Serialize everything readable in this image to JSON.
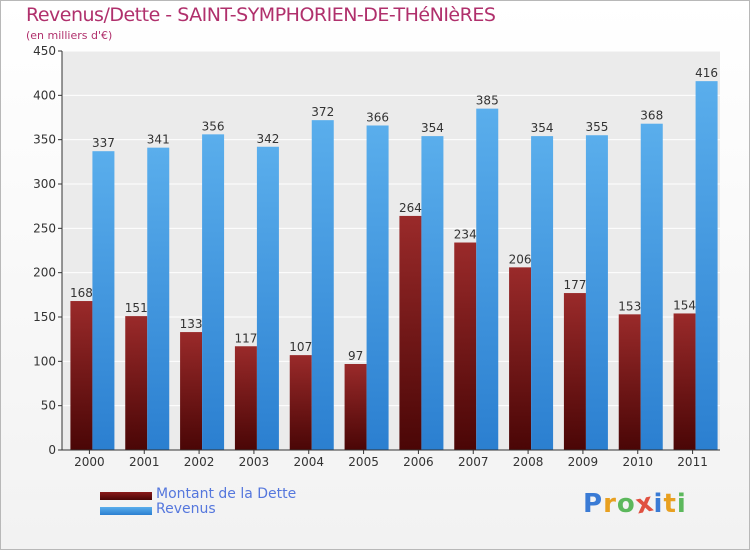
{
  "header": {
    "title": "Revenus/Dette - SAINT-SYMPHORIEN-DE-THéNIèRES",
    "subtitle": "(en milliers d'€)"
  },
  "chart_data": {
    "type": "bar",
    "categories": [
      "2000",
      "2001",
      "2002",
      "2003",
      "2004",
      "2005",
      "2006",
      "2007",
      "2008",
      "2009",
      "2010",
      "2011"
    ],
    "series": [
      {
        "name": "Montant de la Dette",
        "values": [
          168,
          151,
          133,
          117,
          107,
          97,
          264,
          234,
          206,
          177,
          153,
          154
        ],
        "color": "#8b1a1a"
      },
      {
        "name": "Revenus",
        "values": [
          337,
          341,
          356,
          342,
          372,
          366,
          354,
          385,
          354,
          355,
          368,
          416
        ],
        "color": "#4fa3e8"
      }
    ],
    "ylim": [
      0,
      450
    ],
    "yticks": [
      0,
      50,
      100,
      150,
      200,
      250,
      300,
      350,
      400,
      450
    ],
    "grid": true,
    "legend_placement": "bottom-left"
  },
  "legend": {
    "items": [
      {
        "label": "Montant de la Dette",
        "color": "#6b0f0f"
      },
      {
        "label": "Revenus",
        "color": "#4fa3e8"
      }
    ]
  },
  "logo": {
    "letters": [
      "P",
      "r",
      "o",
      "x",
      "i",
      "t",
      "i"
    ],
    "colors": [
      "#3a7bd5",
      "#e8a020",
      "#5cb85c",
      "#e05040",
      "#3a7bd5",
      "#e8a020",
      "#5cb85c"
    ]
  }
}
